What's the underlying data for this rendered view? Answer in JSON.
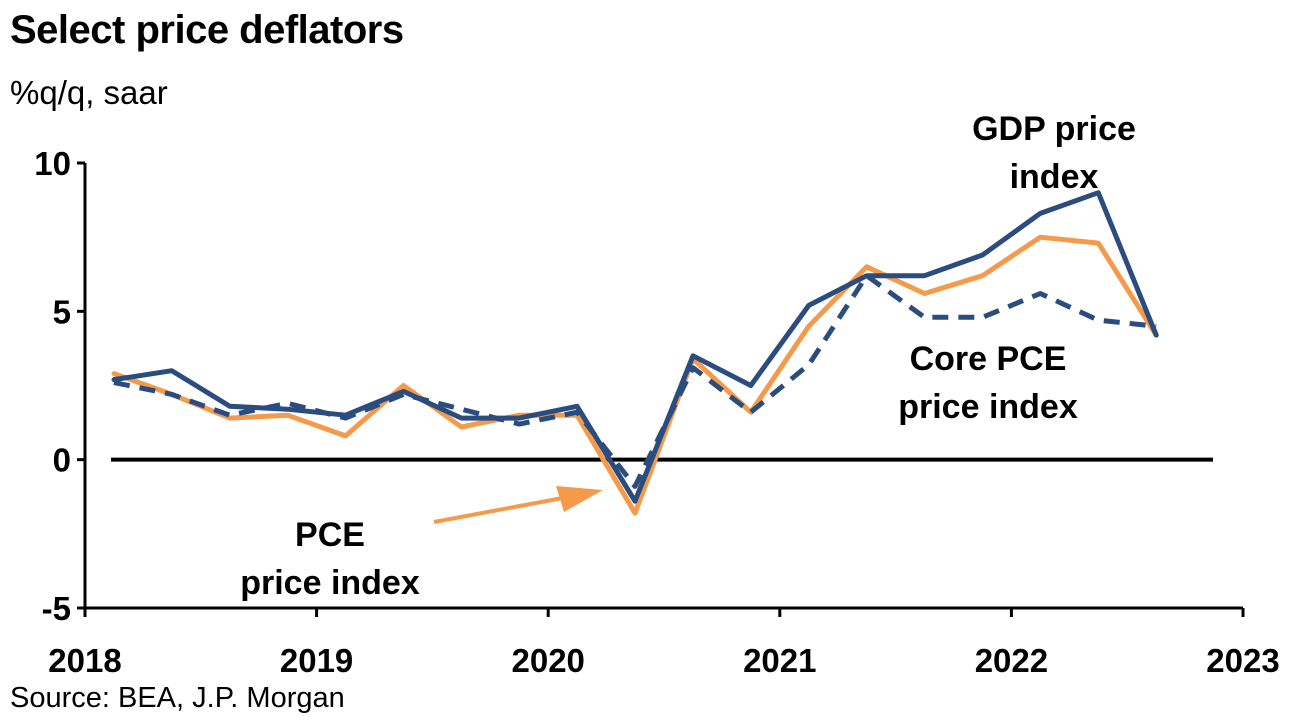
{
  "chart_data": {
    "type": "line",
    "title": "Select price deflators",
    "subtitle": "%q/q, saar",
    "source": "Source: BEA, J.P. Morgan",
    "xlabel": "",
    "ylabel": "",
    "ylim": [
      -5,
      10
    ],
    "yticks": [
      10,
      5,
      0,
      -5
    ],
    "xlim": [
      2018,
      2023
    ],
    "xticks": [
      2018,
      2019,
      2020,
      2021,
      2022,
      2023
    ],
    "grid": false,
    "x": [
      2018.125,
      2018.375,
      2018.625,
      2018.875,
      2019.125,
      2019.375,
      2019.625,
      2019.875,
      2020.125,
      2020.375,
      2020.625,
      2020.875,
      2021.125,
      2021.375,
      2021.625,
      2021.875,
      2022.125,
      2022.375,
      2022.625
    ],
    "series": [
      {
        "name": "GDP price index",
        "color": "#2b4c7e",
        "style": "solid",
        "values": [
          2.7,
          3.0,
          1.8,
          1.7,
          1.5,
          2.3,
          1.4,
          1.4,
          1.8,
          -1.4,
          3.5,
          2.5,
          5.2,
          6.2,
          6.2,
          6.9,
          8.3,
          9.0,
          4.2
        ]
      },
      {
        "name": "PCE price index",
        "color": "#f59a4b",
        "style": "solid",
        "values": [
          2.9,
          2.2,
          1.4,
          1.5,
          0.8,
          2.5,
          1.1,
          1.5,
          1.5,
          -1.8,
          3.4,
          1.6,
          4.5,
          6.5,
          5.6,
          6.2,
          7.5,
          7.3,
          4.2
        ]
      },
      {
        "name": "Core PCE price index",
        "color": "#2b4c7e",
        "style": "dashed",
        "values": [
          2.6,
          2.2,
          1.5,
          1.9,
          1.4,
          2.2,
          1.7,
          1.2,
          1.6,
          -0.9,
          3.1,
          1.6,
          3.2,
          6.2,
          4.8,
          4.8,
          5.6,
          4.7,
          4.5
        ]
      }
    ],
    "annotations": [
      {
        "text": "GDP price",
        "text2": "index"
      },
      {
        "text": "Core PCE",
        "text2": "price index"
      },
      {
        "text": "PCE",
        "text2": "price index"
      }
    ]
  }
}
